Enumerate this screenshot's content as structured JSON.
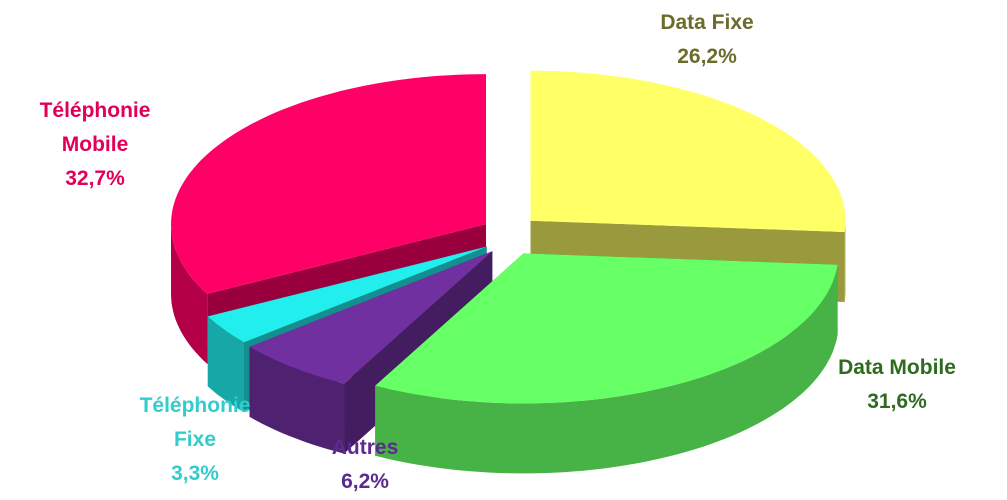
{
  "chart_data": {
    "type": "pie3d",
    "categories": [
      "Data Fixe",
      "Data Mobile",
      "Autres",
      "Téléphonie Fixe",
      "Téléphonie Mobile"
    ],
    "values": [
      26.2,
      31.6,
      6.2,
      3.3,
      32.7
    ],
    "value_labels": [
      "26,2%",
      "31,6%",
      "6,2%",
      "3,3%",
      "32,7%"
    ],
    "colors": [
      "#ffff66",
      "#66ff66",
      "#7030a0",
      "#22eeee",
      "#ff0066"
    ],
    "label_colors": [
      "#6b6b2e",
      "#2f6b1f",
      "#5b2a8c",
      "#33cccc",
      "#e0005a"
    ]
  }
}
